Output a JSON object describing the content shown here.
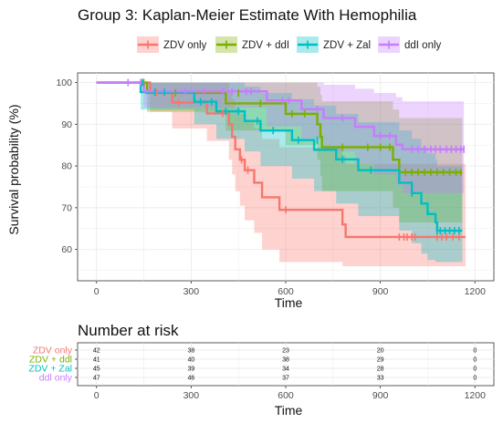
{
  "chart_data": [
    {
      "type": "line",
      "subtype": "kaplan-meier",
      "title": "Group 3: Kaplan-Meier Estimate With Hemophilia",
      "xlabel": "Time",
      "ylabel": "Survival probability (%)",
      "xlim": [
        0,
        1200
      ],
      "ylim": [
        55,
        100
      ],
      "xticks": [
        0,
        300,
        600,
        900,
        1200
      ],
      "yticks": [
        60,
        70,
        80,
        90,
        100
      ],
      "grid": true,
      "legend_position": "top",
      "series": [
        {
          "name": "ZDV only",
          "color": "#F8766D",
          "steps": [
            [
              0,
              100
            ],
            [
              170,
              97.6
            ],
            [
              240,
              95.2
            ],
            [
              350,
              92.6
            ],
            [
              420,
              90
            ],
            [
              430,
              87
            ],
            [
              440,
              84
            ],
            [
              455,
              81.5
            ],
            [
              470,
              79
            ],
            [
              500,
              76
            ],
            [
              525,
              72.5
            ],
            [
              580,
              69.5
            ],
            [
              630,
              69.5
            ],
            [
              780,
              66
            ],
            [
              790,
              63
            ],
            [
              1170,
              63
            ]
          ],
          "ci_upper": [
            [
              0,
              100
            ],
            [
              170,
              100
            ],
            [
              240,
              100
            ],
            [
              350,
              100
            ],
            [
              420,
              98
            ],
            [
              430,
              96
            ],
            [
              440,
              94
            ],
            [
              455,
              92.5
            ],
            [
              470,
              91
            ],
            [
              500,
              89
            ],
            [
              525,
              86.5
            ],
            [
              580,
              84.5
            ],
            [
              630,
              84.5
            ],
            [
              780,
              82.5
            ],
            [
              790,
              80.5
            ],
            [
              1170,
              80.5
            ]
          ],
          "ci_lower": [
            [
              0,
              100
            ],
            [
              170,
              93
            ],
            [
              240,
              89
            ],
            [
              350,
              86
            ],
            [
              420,
              81.5
            ],
            [
              430,
              78
            ],
            [
              440,
              74
            ],
            [
              455,
              70.5
            ],
            [
              470,
              67
            ],
            [
              500,
              64
            ],
            [
              525,
              60
            ],
            [
              580,
              57
            ],
            [
              630,
              57
            ],
            [
              780,
              56
            ],
            [
              790,
              56
            ],
            [
              1170,
              56
            ]
          ],
          "censored": [
            [
              190,
              97.6
            ],
            [
              260,
              95.2
            ],
            [
              400,
              92.6
            ],
            [
              460,
              81.5
            ],
            [
              480,
              79
            ],
            [
              600,
              69.5
            ],
            [
              960,
              63
            ],
            [
              975,
              63
            ],
            [
              985,
              63
            ],
            [
              1000,
              63
            ],
            [
              1010,
              63
            ],
            [
              1080,
              63
            ],
            [
              1095,
              63
            ],
            [
              1110,
              63
            ],
            [
              1130,
              63
            ],
            [
              1150,
              63
            ]
          ]
        },
        {
          "name": "ZDV + ddI",
          "color": "#7CAE00",
          "steps": [
            [
              0,
              100
            ],
            [
              160,
              97.5
            ],
            [
              410,
              95
            ],
            [
              600,
              92.5
            ],
            [
              700,
              90
            ],
            [
              710,
              87
            ],
            [
              715,
              84.5
            ],
            [
              830,
              84.5
            ],
            [
              940,
              81.5
            ],
            [
              960,
              78.5
            ],
            [
              1160,
              78.5
            ]
          ],
          "ci_upper": [
            [
              0,
              100
            ],
            [
              160,
              100
            ],
            [
              410,
              100
            ],
            [
              600,
              100
            ],
            [
              700,
              99
            ],
            [
              710,
              97
            ],
            [
              715,
              95.5
            ],
            [
              830,
              95.5
            ],
            [
              940,
              93.5
            ],
            [
              960,
              91.5
            ],
            [
              1160,
              91.5
            ]
          ],
          "ci_lower": [
            [
              0,
              100
            ],
            [
              160,
              93
            ],
            [
              410,
              88.5
            ],
            [
              600,
              85
            ],
            [
              700,
              81.5
            ],
            [
              710,
              77.5
            ],
            [
              715,
              74
            ],
            [
              830,
              74
            ],
            [
              940,
              70
            ],
            [
              960,
              66.5
            ],
            [
              1160,
              66.5
            ]
          ],
          "censored": [
            [
              150,
              100
            ],
            [
              250,
              97.5
            ],
            [
              450,
              97.5
            ],
            [
              520,
              95
            ],
            [
              620,
              92.5
            ],
            [
              660,
              92.5
            ],
            [
              780,
              84.5
            ],
            [
              860,
              84.5
            ],
            [
              900,
              84.5
            ],
            [
              930,
              84.5
            ],
            [
              980,
              78.5
            ],
            [
              1000,
              78.5
            ],
            [
              1020,
              78.5
            ],
            [
              1040,
              78.5
            ],
            [
              1060,
              78.5
            ],
            [
              1080,
              78.5
            ],
            [
              1100,
              78.5
            ],
            [
              1120,
              78.5
            ],
            [
              1140,
              78.5
            ],
            [
              1155,
              78.5
            ]
          ]
        },
        {
          "name": "ZDV + Zal",
          "color": "#00BFC4",
          "steps": [
            [
              0,
              100
            ],
            [
              140,
              97.7
            ],
            [
              310,
              95.4
            ],
            [
              380,
              93.1
            ],
            [
              470,
              90.8
            ],
            [
              520,
              88.5
            ],
            [
              620,
              86.2
            ],
            [
              690,
              83.9
            ],
            [
              760,
              81.6
            ],
            [
              830,
              79
            ],
            [
              930,
              79
            ],
            [
              960,
              76
            ],
            [
              1000,
              73.5
            ],
            [
              1030,
              71
            ],
            [
              1050,
              68.5
            ],
            [
              1075,
              66.5
            ],
            [
              1080,
              64.5
            ],
            [
              1160,
              64.5
            ]
          ],
          "ci_upper": [
            [
              0,
              100
            ],
            [
              140,
              100
            ],
            [
              310,
              100
            ],
            [
              380,
              100
            ],
            [
              470,
              99
            ],
            [
              520,
              97.5
            ],
            [
              620,
              96
            ],
            [
              690,
              94.5
            ],
            [
              760,
              92.5
            ],
            [
              830,
              90.5
            ],
            [
              930,
              90.5
            ],
            [
              960,
              88.5
            ],
            [
              1000,
              86.5
            ],
            [
              1030,
              84.5
            ],
            [
              1050,
              83
            ],
            [
              1075,
              81.5
            ],
            [
              1080,
              80
            ],
            [
              1160,
              80
            ]
          ],
          "ci_lower": [
            [
              0,
              100
            ],
            [
              140,
              93.5
            ],
            [
              310,
              90
            ],
            [
              380,
              86.5
            ],
            [
              470,
              83.5
            ],
            [
              520,
              80
            ],
            [
              620,
              77
            ],
            [
              690,
              74
            ],
            [
              760,
              71
            ],
            [
              830,
              68
            ],
            [
              930,
              68
            ],
            [
              960,
              64.5
            ],
            [
              1000,
              61.5
            ],
            [
              1030,
              59
            ],
            [
              1050,
              57.5
            ],
            [
              1075,
              57
            ],
            [
              1080,
              57
            ],
            [
              1160,
              57
            ]
          ],
          "censored": [
            [
              145,
              100
            ],
            [
              185,
              97.7
            ],
            [
              215,
              97.7
            ],
            [
              330,
              95.4
            ],
            [
              365,
              95.4
            ],
            [
              410,
              93.1
            ],
            [
              450,
              93.1
            ],
            [
              510,
              90.8
            ],
            [
              560,
              88.5
            ],
            [
              640,
              86.2
            ],
            [
              700,
              86.2
            ],
            [
              780,
              81.6
            ],
            [
              870,
              79
            ],
            [
              1000,
              73.5
            ],
            [
              1080,
              64.5
            ],
            [
              1090,
              64.5
            ],
            [
              1105,
              64.5
            ],
            [
              1120,
              64.5
            ],
            [
              1135,
              64.5
            ],
            [
              1150,
              64.5
            ]
          ]
        },
        {
          "name": "ddI only",
          "color": "#C77CFF",
          "steps": [
            [
              0,
              100
            ],
            [
              150,
              97.9
            ],
            [
              540,
              95.7
            ],
            [
              650,
              93.6
            ],
            [
              720,
              91.5
            ],
            [
              820,
              89.4
            ],
            [
              880,
              87.2
            ],
            [
              950,
              85.1
            ],
            [
              970,
              84
            ],
            [
              1165,
              84
            ]
          ],
          "ci_upper": [
            [
              0,
              100
            ],
            [
              150,
              100
            ],
            [
              540,
              100
            ],
            [
              650,
              100
            ],
            [
              720,
              99.5
            ],
            [
              820,
              98.5
            ],
            [
              880,
              97.5
            ],
            [
              950,
              96.5
            ],
            [
              970,
              95.5
            ],
            [
              1165,
              95.5
            ]
          ],
          "ci_lower": [
            [
              0,
              100
            ],
            [
              150,
              94
            ],
            [
              540,
              89.5
            ],
            [
              650,
              86.5
            ],
            [
              720,
              83.5
            ],
            [
              820,
              80.5
            ],
            [
              880,
              78
            ],
            [
              950,
              75.5
            ],
            [
              970,
              73.5
            ],
            [
              1165,
              73.5
            ]
          ],
          "censored": [
            [
              100,
              100
            ],
            [
              140,
              100
            ],
            [
              280,
              97.9
            ],
            [
              340,
              97.9
            ],
            [
              400,
              97.9
            ],
            [
              430,
              97.9
            ],
            [
              475,
              97.9
            ],
            [
              490,
              97.9
            ],
            [
              590,
              95.7
            ],
            [
              610,
              95.7
            ],
            [
              700,
              93.6
            ],
            [
              780,
              91.5
            ],
            [
              900,
              87.2
            ],
            [
              930,
              87.2
            ],
            [
              1000,
              84
            ],
            [
              1020,
              84
            ],
            [
              1040,
              84
            ],
            [
              1060,
              84
            ],
            [
              1075,
              84
            ],
            [
              1090,
              84
            ],
            [
              1110,
              84
            ],
            [
              1125,
              84
            ],
            [
              1140,
              84
            ],
            [
              1155,
              84
            ],
            [
              1165,
              84
            ]
          ]
        }
      ]
    },
    {
      "type": "table",
      "title": "Number at risk",
      "xlabel": "Time",
      "xticks": [
        0,
        300,
        600,
        900,
        1200
      ],
      "rows": [
        {
          "name": "ZDV only",
          "color": "#F8766D",
          "values": [
            "42",
            "38",
            "23",
            "20",
            "0"
          ]
        },
        {
          "name": "ZDV + ddl",
          "color": "#7CAE00",
          "values": [
            "41",
            "40",
            "38",
            "29",
            "0"
          ]
        },
        {
          "name": "ZDV + Zal",
          "color": "#00BFC4",
          "values": [
            "45",
            "39",
            "34",
            "28",
            "0"
          ]
        },
        {
          "name": "ddl only",
          "color": "#C77CFF",
          "values": [
            "47",
            "46",
            "37",
            "33",
            "0"
          ]
        }
      ]
    }
  ]
}
